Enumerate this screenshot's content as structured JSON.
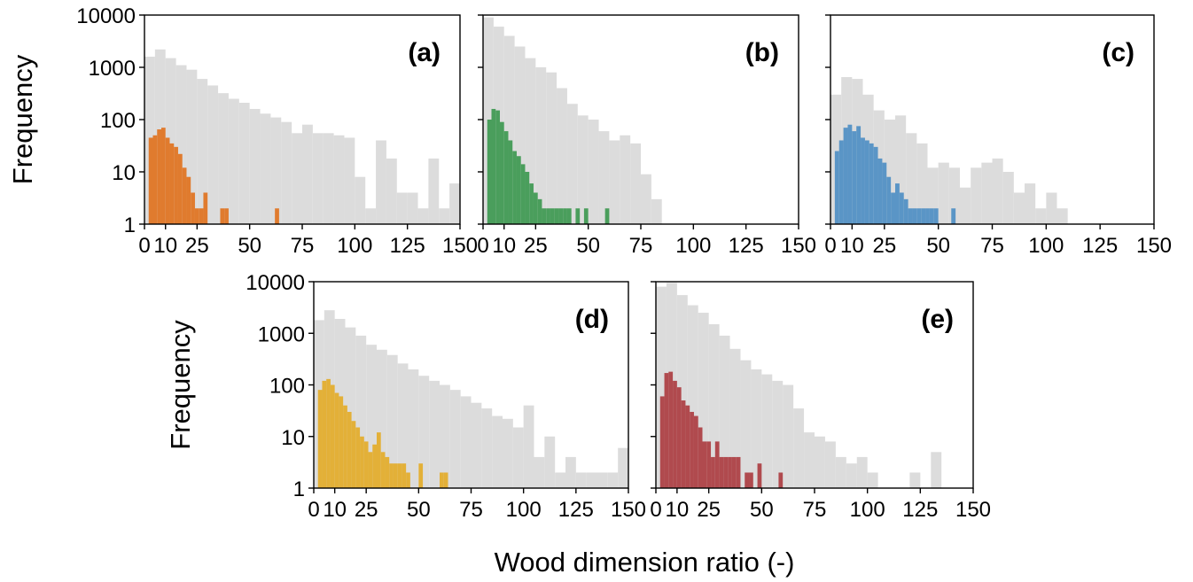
{
  "figure": {
    "shared_xlabel": "Wood dimension ratio (-)"
  },
  "chart_data": [
    {
      "type": "bar",
      "panel_label": "(a)",
      "xlabel": "Wood dimension ratio (-)",
      "ylabel": "Frequency",
      "xlim": [
        0,
        150
      ],
      "ylim": [
        1,
        10000
      ],
      "yscale": "log",
      "xticks": [
        0,
        10,
        25,
        50,
        75,
        100,
        125,
        150
      ],
      "yticks": [
        1,
        10,
        100,
        1000,
        10000
      ],
      "bin_width": 5,
      "background_color": "#dcdcdc",
      "subset_color": "#e07b2e",
      "background": {
        "bin_starts": [
          0,
          5,
          10,
          15,
          20,
          25,
          30,
          35,
          40,
          45,
          50,
          55,
          60,
          65,
          70,
          75,
          80,
          85,
          90,
          95,
          100,
          105,
          110,
          115,
          120,
          125,
          130,
          135,
          140,
          145
        ],
        "values": [
          1600,
          2200,
          1500,
          1100,
          900,
          600,
          450,
          320,
          250,
          210,
          160,
          130,
          110,
          90,
          55,
          80,
          55,
          55,
          50,
          45,
          8,
          2,
          40,
          18,
          4,
          4,
          2,
          18,
          2,
          6
        ]
      },
      "subset": {
        "bin_edges": [
          2,
          4,
          6,
          8,
          10,
          12,
          14,
          16,
          18,
          20,
          22,
          24,
          26,
          28,
          30,
          32,
          34,
          36,
          38,
          40,
          60,
          62,
          64
        ],
        "values": [
          45,
          50,
          65,
          70,
          45,
          35,
          30,
          22,
          12,
          8,
          4,
          2,
          2,
          4,
          0,
          0,
          0,
          2,
          2,
          0,
          0,
          2
        ]
      }
    },
    {
      "type": "bar",
      "panel_label": "(b)",
      "xlabel": "Wood dimension ratio (-)",
      "ylabel": "",
      "xlim": [
        0,
        150
      ],
      "ylim": [
        1,
        10000
      ],
      "yscale": "log",
      "xticks": [
        0,
        10,
        25,
        50,
        75,
        100,
        125,
        150
      ],
      "yticks": [
        1,
        10,
        100,
        1000,
        10000
      ],
      "bin_width": 5,
      "background_color": "#dcdcdc",
      "subset_color": "#4a9e5c",
      "background": {
        "bin_starts": [
          0,
          5,
          10,
          15,
          20,
          25,
          30,
          35,
          40,
          45,
          50,
          55,
          60,
          65,
          70,
          75,
          80,
          85,
          90,
          95,
          100,
          105,
          110,
          115,
          120,
          125,
          130,
          135,
          140,
          145
        ],
        "values": [
          9000,
          6000,
          4000,
          2500,
          1500,
          1000,
          800,
          400,
          200,
          120,
          100,
          60,
          40,
          50,
          35,
          9,
          3,
          1,
          1,
          1,
          1,
          1,
          1,
          1,
          1,
          1,
          1,
          1,
          1,
          1
        ]
      },
      "subset": {
        "bin_edges": [
          2,
          4,
          6,
          8,
          10,
          12,
          14,
          16,
          18,
          20,
          22,
          24,
          26,
          28,
          30,
          32,
          34,
          36,
          38,
          40,
          42,
          44,
          46,
          48,
          50,
          52,
          58,
          60,
          62
        ],
        "values": [
          100,
          160,
          150,
          90,
          60,
          40,
          25,
          20,
          14,
          10,
          6,
          4,
          3,
          2,
          2,
          2,
          2,
          2,
          2,
          2,
          0,
          2,
          0,
          2,
          0,
          0,
          2,
          0
        ]
      }
    },
    {
      "type": "bar",
      "panel_label": "(c)",
      "xlabel": "Wood dimension ratio (-)",
      "ylabel": "",
      "xlim": [
        0,
        150
      ],
      "ylim": [
        1,
        10000
      ],
      "yscale": "log",
      "xticks": [
        0,
        10,
        25,
        50,
        75,
        100,
        125,
        150
      ],
      "yticks": [
        1,
        10,
        100,
        1000,
        10000
      ],
      "bin_width": 5,
      "background_color": "#dcdcdc",
      "subset_color": "#5a95c6",
      "background": {
        "bin_starts": [
          0,
          5,
          10,
          15,
          20,
          25,
          30,
          35,
          40,
          45,
          50,
          55,
          60,
          65,
          70,
          75,
          80,
          85,
          90,
          95,
          100,
          105
        ],
        "values": [
          300,
          650,
          600,
          300,
          150,
          100,
          120,
          55,
          35,
          12,
          15,
          12,
          5,
          12,
          15,
          18,
          10,
          4,
          6,
          2,
          4,
          2
        ]
      },
      "subset": {
        "bin_edges": [
          2,
          4,
          6,
          8,
          10,
          12,
          14,
          16,
          18,
          20,
          22,
          24,
          26,
          28,
          30,
          32,
          34,
          36,
          38,
          40,
          42,
          44,
          46,
          48,
          50,
          56,
          58,
          60,
          62
        ],
        "values": [
          25,
          40,
          70,
          80,
          60,
          75,
          45,
          40,
          35,
          30,
          18,
          15,
          8,
          4,
          6,
          4,
          3,
          2,
          2,
          2,
          2,
          2,
          2,
          2,
          0,
          2,
          0,
          0
        ]
      }
    },
    {
      "type": "bar",
      "panel_label": "(d)",
      "xlabel": "Wood dimension ratio (-)",
      "ylabel": "Frequency",
      "xlim": [
        0,
        150
      ],
      "ylim": [
        1,
        10000
      ],
      "yscale": "log",
      "xticks": [
        0,
        10,
        25,
        50,
        75,
        100,
        125,
        150
      ],
      "yticks": [
        1,
        10,
        100,
        1000,
        10000
      ],
      "bin_width": 5,
      "background_color": "#dcdcdc",
      "subset_color": "#e3b038",
      "background": {
        "bin_starts": [
          0,
          5,
          10,
          15,
          20,
          25,
          30,
          35,
          40,
          45,
          50,
          55,
          60,
          65,
          70,
          75,
          80,
          85,
          90,
          95,
          100,
          105,
          110,
          115,
          120,
          125,
          130,
          135,
          140,
          145
        ],
        "values": [
          1800,
          2800,
          1900,
          1300,
          900,
          600,
          480,
          380,
          260,
          200,
          150,
          120,
          100,
          80,
          60,
          45,
          35,
          25,
          22,
          15,
          40,
          4,
          10,
          2,
          4,
          2,
          2,
          2,
          2,
          6
        ]
      },
      "subset": {
        "bin_edges": [
          2,
          4,
          6,
          8,
          10,
          12,
          14,
          16,
          18,
          20,
          22,
          24,
          26,
          28,
          30,
          32,
          34,
          36,
          38,
          40,
          42,
          44,
          46,
          48,
          50,
          52,
          56,
          58,
          60,
          62,
          64
        ],
        "values": [
          80,
          120,
          130,
          100,
          70,
          60,
          40,
          30,
          20,
          15,
          10,
          8,
          5,
          7,
          12,
          5,
          4,
          3,
          3,
          3,
          3,
          2,
          0,
          0,
          3,
          0,
          0,
          0,
          2,
          2
        ]
      }
    },
    {
      "type": "bar",
      "panel_label": "(e)",
      "xlabel": "Wood dimension ratio (-)",
      "ylabel": "",
      "xlim": [
        0,
        150
      ],
      "ylim": [
        1,
        10000
      ],
      "yscale": "log",
      "xticks": [
        0,
        10,
        25,
        50,
        75,
        100,
        125,
        150
      ],
      "yticks": [
        1,
        10,
        100,
        1000,
        10000
      ],
      "bin_width": 5,
      "background_color": "#dcdcdc",
      "subset_color": "#b04a4e",
      "background": {
        "bin_starts": [
          0,
          5,
          10,
          15,
          20,
          25,
          30,
          35,
          40,
          45,
          50,
          55,
          60,
          65,
          70,
          75,
          80,
          85,
          90,
          95,
          100,
          105,
          110,
          115,
          120,
          125,
          130,
          135
        ],
        "values": [
          8000,
          9500,
          5500,
          3500,
          2500,
          1500,
          900,
          500,
          300,
          200,
          160,
          120,
          100,
          35,
          12,
          10,
          8,
          4,
          3,
          4,
          2,
          1,
          1,
          1,
          2,
          1,
          5,
          1
        ]
      },
      "subset": {
        "bin_edges": [
          2,
          4,
          6,
          8,
          10,
          12,
          14,
          16,
          18,
          20,
          22,
          24,
          26,
          28,
          30,
          32,
          34,
          36,
          38,
          40,
          42,
          44,
          46,
          48,
          50,
          52,
          56,
          58,
          60
        ],
        "values": [
          60,
          170,
          180,
          120,
          90,
          50,
          40,
          30,
          25,
          15,
          8,
          8,
          4,
          8,
          4,
          4,
          4,
          4,
          4,
          0,
          2,
          2,
          0,
          3,
          0,
          0,
          0,
          2
        ]
      }
    }
  ]
}
